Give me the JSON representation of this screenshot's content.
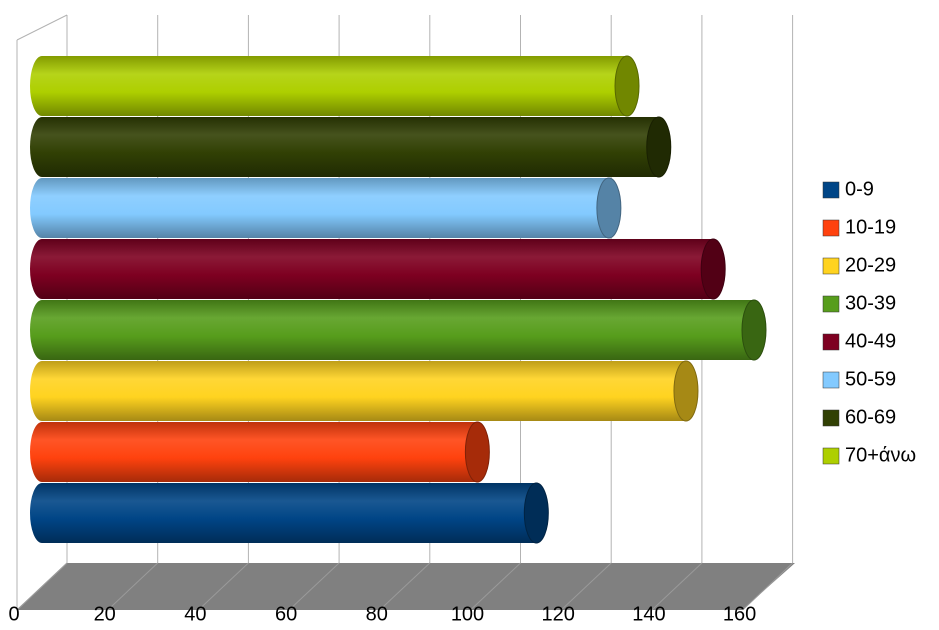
{
  "chart_data": {
    "type": "bar3d",
    "series": [
      {
        "name": "0-9",
        "color": "#004586",
        "values": [
          109
        ]
      },
      {
        "name": "10-19",
        "color": "#ff420e",
        "values": [
          96
        ]
      },
      {
        "name": "20-29",
        "color": "#ffd320",
        "values": [
          142
        ]
      },
      {
        "name": "30-39",
        "color": "#579d1c",
        "values": [
          157
        ]
      },
      {
        "name": "40-49",
        "color": "#7e0021",
        "values": [
          148
        ]
      },
      {
        "name": "50-59",
        "color": "#83caff",
        "values": [
          125
        ]
      },
      {
        "name": "60-69",
        "color": "#314004",
        "values": [
          136
        ]
      },
      {
        "name": "70+άνω",
        "color": "#aecf00",
        "values": [
          129
        ]
      }
    ],
    "xlim": [
      0,
      160
    ],
    "xticks": [
      0,
      20,
      40,
      60,
      80,
      100,
      120,
      140,
      160
    ],
    "grid": true
  }
}
